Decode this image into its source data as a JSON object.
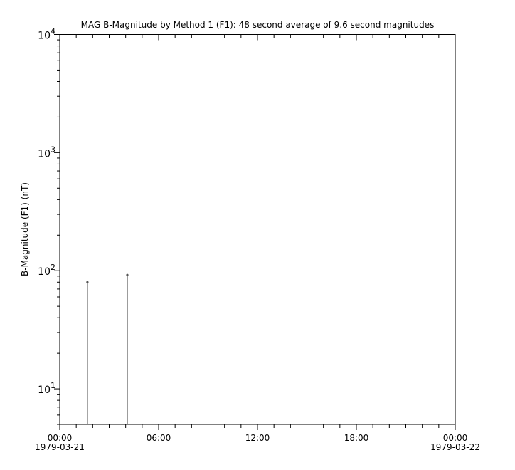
{
  "chart_data": {
    "type": "line",
    "title": "MAG  B-Magnitude by Method 1 (F1): 48 second average of 9.6 second magnitudes",
    "ylabel": "B-Magnitude (F1) (nT)",
    "xlabel": "",
    "yscale": "log",
    "ylim": [
      5,
      10000
    ],
    "xlim": [
      "1979-03-21T00:00",
      "1979-03-22T00:00"
    ],
    "y_ticks": [
      {
        "base": "10",
        "exp": "1",
        "value": 10
      },
      {
        "base": "10",
        "exp": "2",
        "value": 100
      },
      {
        "base": "10",
        "exp": "3",
        "value": 1000
      },
      {
        "base": "10",
        "exp": "4",
        "value": 10000
      }
    ],
    "x_ticks": [
      {
        "time": "00:00",
        "date": "1979-03-21",
        "hours": 0
      },
      {
        "time": "06:00",
        "date": "",
        "hours": 6
      },
      {
        "time": "12:00",
        "date": "",
        "hours": 12
      },
      {
        "time": "18:00",
        "date": "",
        "hours": 18
      },
      {
        "time": "00:00",
        "date": "1979-03-22",
        "hours": 24
      }
    ],
    "grid": false,
    "color": "#555555",
    "series": [
      {
        "points": [
          {
            "time": "1979-03-21T01:41",
            "hours": 1.68,
            "value": 80
          },
          {
            "time": "1979-03-21T04:06",
            "hours": 4.1,
            "value": 92
          }
        ]
      }
    ]
  }
}
